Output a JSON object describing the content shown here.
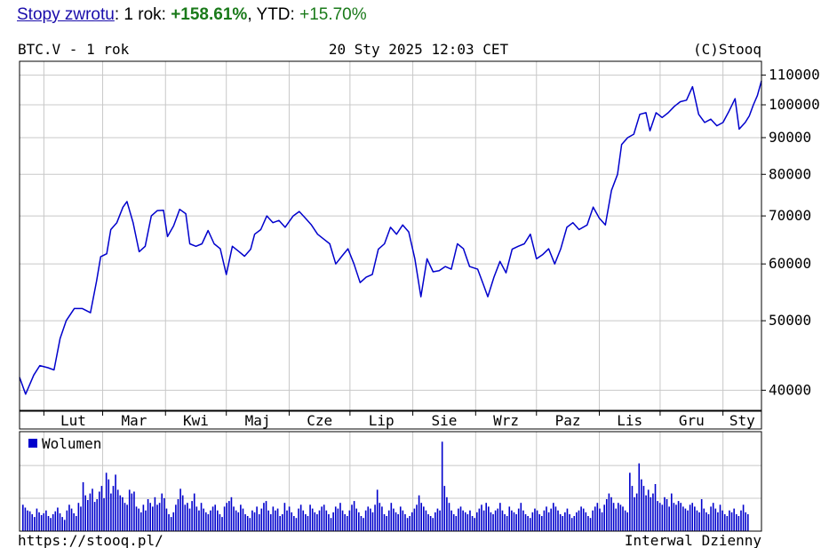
{
  "header": {
    "link_label": "Stopy zwrotu",
    "sep1": ": ",
    "period_label": "1 rok: ",
    "period_value": "+158.61%",
    "sep2": ", ",
    "ytd_label": "YTD: ",
    "ytd_value": "+15.70%"
  },
  "chart_data": [
    {
      "type": "line",
      "instrument_label": "BTC.V - 1 rok",
      "timestamp_label": "20 Sty 2025 12:03 CET",
      "copyright_label": "(C)Stooq",
      "y_scale": "log",
      "ylim": [
        37500,
        115000
      ],
      "y_ticks": [
        {
          "value": 40000,
          "label": "40000"
        },
        {
          "value": 50000,
          "label": "50000"
        },
        {
          "value": 60000,
          "label": "60000"
        },
        {
          "value": 70000,
          "label": "70000"
        },
        {
          "value": 80000,
          "label": "80000"
        },
        {
          "value": 90000,
          "label": "90000"
        },
        {
          "value": 100000,
          "label": "100000"
        },
        {
          "value": 110000,
          "label": "110000"
        }
      ],
      "x_range": [
        "2024-01-20",
        "2025-01-20"
      ],
      "month_ticks": [
        {
          "label": "Lut",
          "date": "2024-02-01"
        },
        {
          "label": "Mar",
          "date": "2024-03-01"
        },
        {
          "label": "Kwi",
          "date": "2024-04-01"
        },
        {
          "label": "Maj",
          "date": "2024-05-01"
        },
        {
          "label": "Cze",
          "date": "2024-06-01"
        },
        {
          "label": "Lip",
          "date": "2024-07-01"
        },
        {
          "label": "Sie",
          "date": "2024-08-01"
        },
        {
          "label": "Wrz",
          "date": "2024-09-01"
        },
        {
          "label": "Paz",
          "date": "2024-10-01"
        },
        {
          "label": "Lis",
          "date": "2024-11-01"
        },
        {
          "label": "Gru",
          "date": "2024-12-01"
        },
        {
          "label": "Sty",
          "date": "2025-01-01"
        }
      ],
      "series": [
        {
          "color": "#0000cc",
          "points": [
            [
              "2024-01-20",
              41700
            ],
            [
              "2024-01-23",
              39500
            ],
            [
              "2024-01-27",
              42000
            ],
            [
              "2024-01-30",
              43300
            ],
            [
              "2024-02-03",
              43000
            ],
            [
              "2024-02-06",
              42700
            ],
            [
              "2024-02-09",
              47200
            ],
            [
              "2024-02-12",
              50000
            ],
            [
              "2024-02-16",
              52000
            ],
            [
              "2024-02-20",
              52000
            ],
            [
              "2024-02-24",
              51300
            ],
            [
              "2024-02-27",
              56800
            ],
            [
              "2024-02-29",
              61400
            ],
            [
              "2024-03-03",
              62000
            ],
            [
              "2024-03-05",
              67000
            ],
            [
              "2024-03-08",
              68500
            ],
            [
              "2024-03-11",
              72000
            ],
            [
              "2024-03-13",
              73300
            ],
            [
              "2024-03-16",
              68500
            ],
            [
              "2024-03-19",
              62400
            ],
            [
              "2024-03-22",
              63500
            ],
            [
              "2024-03-25",
              70000
            ],
            [
              "2024-03-28",
              71200
            ],
            [
              "2024-03-31",
              71300
            ],
            [
              "2024-04-02",
              65500
            ],
            [
              "2024-04-05",
              67800
            ],
            [
              "2024-04-08",
              71500
            ],
            [
              "2024-04-11",
              70500
            ],
            [
              "2024-04-13",
              64000
            ],
            [
              "2024-04-16",
              63500
            ],
            [
              "2024-04-19",
              64000
            ],
            [
              "2024-04-22",
              66800
            ],
            [
              "2024-04-25",
              64000
            ],
            [
              "2024-04-28",
              63000
            ],
            [
              "2024-05-01",
              58000
            ],
            [
              "2024-05-04",
              63500
            ],
            [
              "2024-05-07",
              62500
            ],
            [
              "2024-05-10",
              61500
            ],
            [
              "2024-05-13",
              62900
            ],
            [
              "2024-05-15",
              66000
            ],
            [
              "2024-05-18",
              67000
            ],
            [
              "2024-05-21",
              70000
            ],
            [
              "2024-05-24",
              68500
            ],
            [
              "2024-05-27",
              69000
            ],
            [
              "2024-05-30",
              67500
            ],
            [
              "2024-06-03",
              70000
            ],
            [
              "2024-06-06",
              71000
            ],
            [
              "2024-06-09",
              69500
            ],
            [
              "2024-06-12",
              68000
            ],
            [
              "2024-06-15",
              66000
            ],
            [
              "2024-06-18",
              65000
            ],
            [
              "2024-06-21",
              64000
            ],
            [
              "2024-06-24",
              60000
            ],
            [
              "2024-06-27",
              61500
            ],
            [
              "2024-06-30",
              63000
            ],
            [
              "2024-07-03",
              60000
            ],
            [
              "2024-07-06",
              56500
            ],
            [
              "2024-07-09",
              57500
            ],
            [
              "2024-07-12",
              58000
            ],
            [
              "2024-07-15",
              62900
            ],
            [
              "2024-07-18",
              64000
            ],
            [
              "2024-07-21",
              67500
            ],
            [
              "2024-07-24",
              66000
            ],
            [
              "2024-07-27",
              68000
            ],
            [
              "2024-07-30",
              66500
            ],
            [
              "2024-08-02",
              61000
            ],
            [
              "2024-08-05",
              54000
            ],
            [
              "2024-08-08",
              61000
            ],
            [
              "2024-08-11",
              58500
            ],
            [
              "2024-08-14",
              58700
            ],
            [
              "2024-08-17",
              59500
            ],
            [
              "2024-08-20",
              59000
            ],
            [
              "2024-08-23",
              64000
            ],
            [
              "2024-08-26",
              63000
            ],
            [
              "2024-08-29",
              59500
            ],
            [
              "2024-09-02",
              59000
            ],
            [
              "2024-09-05",
              56000
            ],
            [
              "2024-09-07",
              54000
            ],
            [
              "2024-09-10",
              57500
            ],
            [
              "2024-09-13",
              60500
            ],
            [
              "2024-09-16",
              58300
            ],
            [
              "2024-09-19",
              62900
            ],
            [
              "2024-09-22",
              63500
            ],
            [
              "2024-09-25",
              64000
            ],
            [
              "2024-09-28",
              66000
            ],
            [
              "2024-10-01",
              61000
            ],
            [
              "2024-10-04",
              61800
            ],
            [
              "2024-10-07",
              63000
            ],
            [
              "2024-10-10",
              60000
            ],
            [
              "2024-10-13",
              63000
            ],
            [
              "2024-10-16",
              67500
            ],
            [
              "2024-10-19",
              68500
            ],
            [
              "2024-10-22",
              67000
            ],
            [
              "2024-10-26",
              68000
            ],
            [
              "2024-10-29",
              72000
            ],
            [
              "2024-11-01",
              69500
            ],
            [
              "2024-11-04",
              68000
            ],
            [
              "2024-11-07",
              76000
            ],
            [
              "2024-11-10",
              80000
            ],
            [
              "2024-11-12",
              88000
            ],
            [
              "2024-11-15",
              90000
            ],
            [
              "2024-11-18",
              91000
            ],
            [
              "2024-11-21",
              97000
            ],
            [
              "2024-11-24",
              97500
            ],
            [
              "2024-11-26",
              92000
            ],
            [
              "2024-11-29",
              97500
            ],
            [
              "2024-12-02",
              96000
            ],
            [
              "2024-12-05",
              97500
            ],
            [
              "2024-12-08",
              99500
            ],
            [
              "2024-12-11",
              101000
            ],
            [
              "2024-12-14",
              101500
            ],
            [
              "2024-12-17",
              106000
            ],
            [
              "2024-12-20",
              97000
            ],
            [
              "2024-12-23",
              94500
            ],
            [
              "2024-12-26",
              95500
            ],
            [
              "2024-12-29",
              93500
            ],
            [
              "2025-01-01",
              94500
            ],
            [
              "2025-01-04",
              98000
            ],
            [
              "2025-01-07",
              102000
            ],
            [
              "2025-01-09",
              92500
            ],
            [
              "2025-01-12",
              94500
            ],
            [
              "2025-01-14",
              96500
            ],
            [
              "2025-01-16",
              100000
            ],
            [
              "2025-01-18",
              103000
            ],
            [
              "2025-01-20",
              108000
            ]
          ]
        }
      ]
    },
    {
      "type": "bar",
      "legend": "Wolumen",
      "color": "#0000cc",
      "volume_note": "relative daily volume 0-1",
      "values": [
        0.28,
        0.25,
        0.22,
        0.21,
        0.18,
        0.15,
        0.24,
        0.2,
        0.17,
        0.19,
        0.22,
        0.16,
        0.14,
        0.18,
        0.21,
        0.25,
        0.19,
        0.15,
        0.12,
        0.22,
        0.28,
        0.24,
        0.19,
        0.16,
        0.3,
        0.26,
        0.52,
        0.38,
        0.33,
        0.4,
        0.45,
        0.31,
        0.34,
        0.42,
        0.48,
        0.35,
        0.62,
        0.55,
        0.4,
        0.48,
        0.6,
        0.44,
        0.38,
        0.36,
        0.3,
        0.28,
        0.44,
        0.4,
        0.42,
        0.26,
        0.24,
        0.2,
        0.28,
        0.22,
        0.34,
        0.3,
        0.26,
        0.36,
        0.28,
        0.3,
        0.4,
        0.35,
        0.24,
        0.18,
        0.15,
        0.2,
        0.28,
        0.34,
        0.45,
        0.38,
        0.28,
        0.3,
        0.24,
        0.32,
        0.4,
        0.26,
        0.22,
        0.3,
        0.24,
        0.2,
        0.18,
        0.22,
        0.26,
        0.28,
        0.22,
        0.18,
        0.15,
        0.26,
        0.3,
        0.32,
        0.36,
        0.26,
        0.22,
        0.2,
        0.28,
        0.24,
        0.18,
        0.16,
        0.14,
        0.22,
        0.2,
        0.26,
        0.18,
        0.24,
        0.3,
        0.32,
        0.22,
        0.18,
        0.26,
        0.22,
        0.24,
        0.16,
        0.18,
        0.3,
        0.22,
        0.26,
        0.2,
        0.16,
        0.14,
        0.24,
        0.28,
        0.22,
        0.18,
        0.16,
        0.28,
        0.24,
        0.2,
        0.18,
        0.22,
        0.26,
        0.28,
        0.22,
        0.18,
        0.14,
        0.2,
        0.26,
        0.24,
        0.3,
        0.22,
        0.18,
        0.16,
        0.22,
        0.28,
        0.32,
        0.24,
        0.2,
        0.16,
        0.14,
        0.22,
        0.26,
        0.24,
        0.2,
        0.28,
        0.44,
        0.3,
        0.26,
        0.18,
        0.16,
        0.22,
        0.3,
        0.24,
        0.2,
        0.18,
        0.26,
        0.22,
        0.18,
        0.14,
        0.16,
        0.2,
        0.24,
        0.28,
        0.38,
        0.3,
        0.26,
        0.22,
        0.18,
        0.16,
        0.14,
        0.2,
        0.24,
        0.22,
        0.95,
        0.48,
        0.36,
        0.3,
        0.22,
        0.18,
        0.16,
        0.24,
        0.26,
        0.22,
        0.2,
        0.18,
        0.22,
        0.16,
        0.14,
        0.2,
        0.24,
        0.28,
        0.22,
        0.3,
        0.26,
        0.2,
        0.18,
        0.22,
        0.24,
        0.3,
        0.22,
        0.18,
        0.16,
        0.26,
        0.22,
        0.2,
        0.18,
        0.24,
        0.3,
        0.22,
        0.18,
        0.16,
        0.14,
        0.2,
        0.24,
        0.22,
        0.18,
        0.16,
        0.22,
        0.26,
        0.2,
        0.24,
        0.3,
        0.26,
        0.22,
        0.18,
        0.16,
        0.2,
        0.24,
        0.18,
        0.14,
        0.16,
        0.2,
        0.22,
        0.26,
        0.24,
        0.2,
        0.16,
        0.14,
        0.22,
        0.26,
        0.3,
        0.24,
        0.2,
        0.28,
        0.34,
        0.4,
        0.36,
        0.3,
        0.24,
        0.3,
        0.28,
        0.26,
        0.22,
        0.2,
        0.62,
        0.48,
        0.36,
        0.4,
        0.72,
        0.55,
        0.48,
        0.38,
        0.44,
        0.36,
        0.4,
        0.5,
        0.32,
        0.3,
        0.28,
        0.36,
        0.34,
        0.26,
        0.4,
        0.3,
        0.28,
        0.32,
        0.3,
        0.26,
        0.24,
        0.22,
        0.28,
        0.3,
        0.26,
        0.22,
        0.2,
        0.34,
        0.24,
        0.2,
        0.18,
        0.26,
        0.3,
        0.24,
        0.2,
        0.28,
        0.22,
        0.18,
        0.16,
        0.22,
        0.2,
        0.24,
        0.18,
        0.16,
        0.22,
        0.28,
        0.2,
        0.18
      ]
    }
  ],
  "footer": {
    "source_url": "https://stooq.pl/",
    "interval_label": "Interwal Dzienny"
  }
}
